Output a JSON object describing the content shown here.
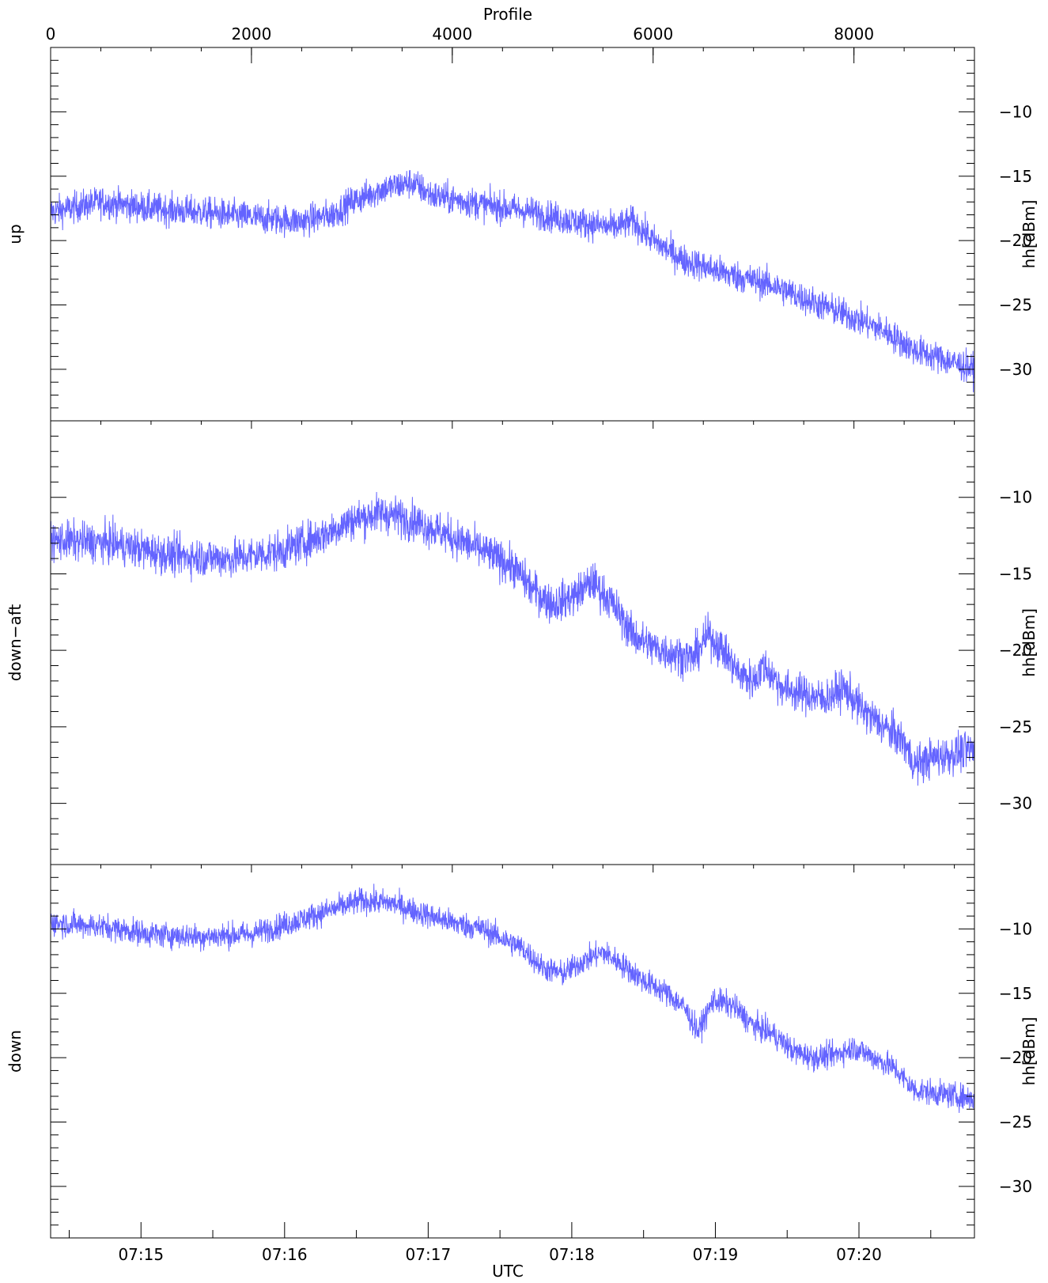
{
  "chart_data": {
    "type": "line",
    "series_color": "#6464ff",
    "top_axis": {
      "label": "Profile",
      "ticks": [
        0,
        2000,
        4000,
        6000,
        8000
      ],
      "tick_labels": [
        "0",
        "2000",
        "4000",
        "6000",
        "8000"
      ],
      "range": [
        0,
        9200
      ]
    },
    "bottom_axis": {
      "label": "UTC",
      "tick_labels": [
        "07:15",
        "07:16",
        "07:17",
        "07:18",
        "07:19",
        "07:20"
      ],
      "tick_positions_profile": [
        900,
        2330,
        3760,
        5190,
        6620,
        8050
      ]
    },
    "panels": [
      {
        "name": "up",
        "ylabel": "hh[dBm]",
        "ylim": [
          -34,
          -5
        ],
        "yticks": [
          -10,
          -15,
          -20,
          -25,
          -30
        ],
        "ytick_labels": [
          "−10",
          "−15",
          "−20",
          "−25",
          "−30"
        ],
        "noise": 0.85,
        "trend": [
          [
            0,
            -17.8
          ],
          [
            500,
            -17.0
          ],
          [
            1000,
            -17.5
          ],
          [
            1500,
            -17.8
          ],
          [
            2000,
            -18.2
          ],
          [
            2500,
            -18.5
          ],
          [
            2800,
            -18.0
          ],
          [
            3000,
            -17.0
          ],
          [
            3300,
            -16.0
          ],
          [
            3600,
            -15.5
          ],
          [
            3800,
            -16.5
          ],
          [
            4300,
            -17.2
          ],
          [
            4800,
            -17.8
          ],
          [
            5200,
            -18.5
          ],
          [
            5600,
            -19.0
          ],
          [
            5800,
            -18.5
          ],
          [
            6000,
            -20.0
          ],
          [
            6300,
            -21.5
          ],
          [
            6700,
            -22.5
          ],
          [
            7200,
            -23.5
          ],
          [
            7500,
            -24.5
          ],
          [
            8000,
            -26.0
          ],
          [
            8300,
            -27.0
          ],
          [
            8600,
            -28.5
          ],
          [
            9200,
            -30.0
          ]
        ]
      },
      {
        "name": "down−aft",
        "ylabel": "hh[dBm]",
        "ylim": [
          -34,
          -5
        ],
        "yticks": [
          -10,
          -15,
          -20,
          -25,
          -30
        ],
        "ytick_labels": [
          "−10",
          "−15",
          "−20",
          "−25",
          "−30"
        ],
        "noise": 0.9,
        "trend": [
          [
            0,
            -12.8
          ],
          [
            600,
            -13.0
          ],
          [
            1200,
            -13.8
          ],
          [
            1800,
            -14.0
          ],
          [
            2300,
            -13.5
          ],
          [
            2700,
            -12.5
          ],
          [
            3000,
            -11.5
          ],
          [
            3300,
            -11.0
          ],
          [
            3600,
            -11.5
          ],
          [
            3900,
            -12.3
          ],
          [
            4300,
            -13.5
          ],
          [
            4600,
            -14.5
          ],
          [
            4800,
            -16.0
          ],
          [
            5000,
            -17.0
          ],
          [
            5200,
            -16.5
          ],
          [
            5400,
            -15.5
          ],
          [
            5600,
            -17.0
          ],
          [
            5800,
            -19.0
          ],
          [
            6000,
            -19.8
          ],
          [
            6200,
            -20.2
          ],
          [
            6400,
            -20.5
          ],
          [
            6550,
            -19.0
          ],
          [
            6700,
            -20.0
          ],
          [
            6850,
            -21.5
          ],
          [
            7000,
            -22.0
          ],
          [
            7100,
            -21.0
          ],
          [
            7300,
            -22.5
          ],
          [
            7700,
            -23.2
          ],
          [
            7900,
            -22.5
          ],
          [
            8100,
            -24.0
          ],
          [
            8400,
            -25.5
          ],
          [
            8500,
            -26.0
          ],
          [
            8600,
            -27.5
          ],
          [
            8800,
            -27.0
          ],
          [
            9200,
            -26.5
          ]
        ]
      },
      {
        "name": "down",
        "ylabel": "hh[dBm]",
        "ylim": [
          -34,
          -5
        ],
        "yticks": [
          -10,
          -15,
          -20,
          -25,
          -30
        ],
        "ytick_labels": [
          "−10",
          "−15",
          "−20",
          "−25",
          "−30"
        ],
        "noise": 0.7,
        "trend": [
          [
            0,
            -9.5
          ],
          [
            500,
            -9.8
          ],
          [
            1000,
            -10.4
          ],
          [
            1500,
            -10.6
          ],
          [
            2000,
            -10.4
          ],
          [
            2400,
            -9.5
          ],
          [
            2800,
            -8.5
          ],
          [
            3100,
            -7.8
          ],
          [
            3400,
            -8.0
          ],
          [
            3700,
            -8.8
          ],
          [
            4000,
            -9.5
          ],
          [
            4300,
            -10.0
          ],
          [
            4700,
            -11.5
          ],
          [
            4900,
            -13.0
          ],
          [
            5100,
            -13.5
          ],
          [
            5300,
            -12.5
          ],
          [
            5500,
            -11.8
          ],
          [
            5700,
            -12.8
          ],
          [
            5900,
            -14.0
          ],
          [
            6100,
            -14.8
          ],
          [
            6300,
            -16.0
          ],
          [
            6450,
            -18.0
          ],
          [
            6600,
            -15.5
          ],
          [
            6800,
            -16.0
          ],
          [
            7000,
            -17.5
          ],
          [
            7200,
            -18.2
          ],
          [
            7400,
            -19.5
          ],
          [
            7600,
            -20.0
          ],
          [
            7800,
            -19.8
          ],
          [
            8000,
            -19.2
          ],
          [
            8200,
            -20.0
          ],
          [
            8400,
            -20.8
          ],
          [
            8600,
            -22.5
          ],
          [
            9200,
            -23.2
          ]
        ]
      }
    ]
  }
}
